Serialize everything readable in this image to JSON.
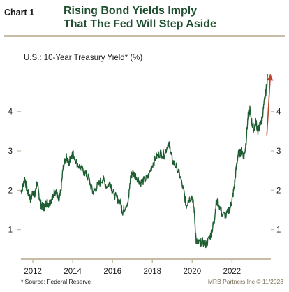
{
  "header": {
    "chart_label": "Chart 1",
    "title_line1": "Rising Bond Yields Imply",
    "title_line2": "That The Fed Will Step Aside",
    "subtitle": "U.S.: 10-Year Treasury Yield* (%)"
  },
  "footer": {
    "source": "*  Source: Federal Reserve",
    "credit": "MRB Partners Inc © 11/2023"
  },
  "colors": {
    "line": "#1f5e33",
    "arrow": "#b5462a",
    "axis": "#c7bda6",
    "rule": "#c7bda6"
  },
  "chart_data": {
    "type": "line",
    "title": "U.S.: 10-Year Treasury Yield* (%)",
    "xlabel": "",
    "ylabel": "",
    "xlim": [
      2011.4,
      2023.95
    ],
    "ylim": [
      0.3,
      5.15
    ],
    "x_ticks": [
      2012,
      2014,
      2016,
      2018,
      2020,
      2022
    ],
    "y_ticks": [
      1,
      2,
      3,
      4
    ],
    "y_axes": "both",
    "grid": false,
    "series": [
      {
        "x": [
          2011.4,
          2011.5,
          2011.6,
          2011.7,
          2011.8,
          2011.9,
          2012.0,
          2012.1,
          2012.2,
          2012.3,
          2012.4,
          2012.5,
          2012.6,
          2012.7,
          2012.8,
          2012.9,
          2013.0,
          2013.1,
          2013.2,
          2013.3,
          2013.4,
          2013.5,
          2013.6,
          2013.7,
          2013.8,
          2013.9,
          2014.0,
          2014.2,
          2014.4,
          2014.6,
          2014.8,
          2015.0,
          2015.1,
          2015.3,
          2015.5,
          2015.7,
          2015.9,
          2016.0,
          2016.2,
          2016.4,
          2016.5,
          2016.6,
          2016.8,
          2016.9,
          2017.0,
          2017.2,
          2017.4,
          2017.6,
          2017.8,
          2018.0,
          2018.2,
          2018.4,
          2018.6,
          2018.8,
          2018.9,
          2019.0,
          2019.2,
          2019.4,
          2019.6,
          2019.7,
          2019.8,
          2020.0,
          2020.1,
          2020.2,
          2020.3,
          2020.5,
          2020.7,
          2020.9,
          2021.0,
          2021.1,
          2021.2,
          2021.3,
          2021.5,
          2021.7,
          2021.9,
          2022.0,
          2022.1,
          2022.2,
          2022.3,
          2022.4,
          2022.5,
          2022.6,
          2022.7,
          2022.8,
          2022.9,
          2023.0,
          2023.1,
          2023.2,
          2023.3,
          2023.4,
          2023.5,
          2023.6,
          2023.7,
          2023.8
        ],
        "y": [
          1.95,
          2.1,
          2.3,
          2.0,
          1.9,
          1.75,
          2.0,
          1.85,
          2.2,
          1.9,
          1.65,
          1.55,
          1.6,
          1.7,
          1.65,
          1.75,
          1.8,
          2.0,
          1.9,
          1.7,
          1.95,
          2.5,
          2.75,
          2.85,
          2.65,
          2.85,
          2.95,
          2.7,
          2.55,
          2.45,
          2.3,
          1.95,
          2.0,
          2.15,
          2.3,
          2.1,
          2.2,
          1.95,
          1.8,
          1.7,
          1.45,
          1.55,
          1.75,
          2.3,
          2.45,
          2.35,
          2.2,
          2.25,
          2.35,
          2.65,
          2.85,
          2.95,
          2.9,
          3.2,
          3.05,
          2.75,
          2.6,
          2.35,
          1.9,
          1.6,
          1.75,
          1.85,
          1.5,
          0.7,
          0.65,
          0.7,
          0.62,
          0.82,
          1.0,
          1.2,
          1.65,
          1.7,
          1.4,
          1.35,
          1.55,
          1.75,
          2.05,
          2.5,
          2.9,
          2.95,
          3.0,
          2.85,
          3.2,
          3.85,
          4.05,
          3.7,
          3.55,
          3.75,
          3.5,
          3.65,
          3.8,
          4.15,
          4.5,
          4.95
        ]
      }
    ],
    "annotations": [
      {
        "type": "arrow",
        "from": [
          2023.75,
          3.4
        ],
        "to": [
          2023.93,
          4.95
        ]
      }
    ]
  }
}
